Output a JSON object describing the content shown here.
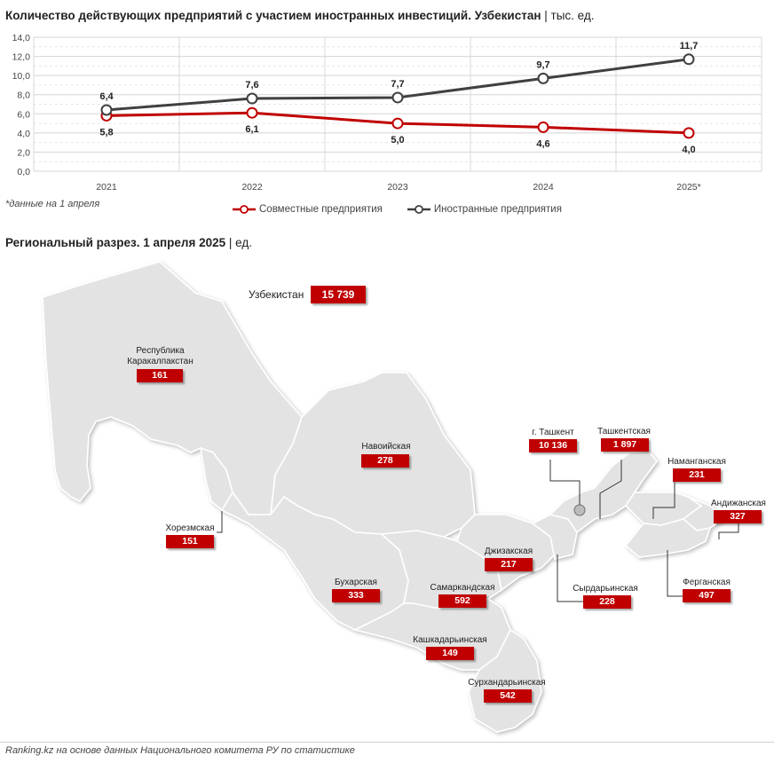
{
  "header": {
    "title": "Количество действующих предприятий с участием иностранных инвестиций. Узбекистан",
    "title_unit": "| тыс. ед."
  },
  "chart_data": {
    "type": "line",
    "title": "Количество действующих предприятий с участием иностранных инвестиций. Узбекистан | тыс. ед.",
    "categories": [
      "2021",
      "2022",
      "2023",
      "2024",
      "2025*"
    ],
    "yticks": [
      "0,0",
      "2,0",
      "4,0",
      "6,0",
      "8,0",
      "10,0",
      "12,0",
      "14,0"
    ],
    "ylim": [
      0,
      14
    ],
    "grid": true,
    "legend_position": "bottom",
    "series": [
      {
        "name": "Совместные предприятия",
        "values": [
          5.8,
          6.1,
          5.0,
          4.6,
          4.0
        ],
        "labels": [
          "5,8",
          "6,1",
          "5,0",
          "4,6",
          "4,0"
        ],
        "color": "#c00000"
      },
      {
        "name": "Иностранные предприятия",
        "values": [
          6.4,
          7.6,
          7.7,
          9.7,
          11.7
        ],
        "labels": [
          "6,4",
          "7,6",
          "7,7",
          "9,7",
          "11,7"
        ],
        "color": "#404040"
      }
    ]
  },
  "note": "*данные на 1 апреля",
  "regional": {
    "title": "Региональный разрез. 1 апреля 2025",
    "title_unit": "| ед.",
    "country_label": "Узбекистан",
    "country_value": "15 739",
    "regions": [
      {
        "name": "Республика Каракалпакстан",
        "value": "161"
      },
      {
        "name": "Навоийская",
        "value": "278"
      },
      {
        "name": "Хорезмская",
        "value": "151"
      },
      {
        "name": "Бухарская",
        "value": "333"
      },
      {
        "name": "Самаркандская",
        "value": "592"
      },
      {
        "name": "Джизакская",
        "value": "217"
      },
      {
        "name": "Кашкадарьинская",
        "value": "149"
      },
      {
        "name": "Сурхандарьинская",
        "value": "542"
      },
      {
        "name": "Сырдарьинская",
        "value": "228"
      },
      {
        "name": "г. Ташкент",
        "value": "10 136"
      },
      {
        "name": "Ташкентская",
        "value": "1 897"
      },
      {
        "name": "Наманганская",
        "value": "231"
      },
      {
        "name": "Андижанская",
        "value": "327"
      },
      {
        "name": "Ферганская",
        "value": "497"
      }
    ]
  },
  "source": "Ranking.kz на основе данных Национального комитета РУ по статистике",
  "colors": {
    "accent": "#c00000",
    "dark": "#404040",
    "map_fill": "#e3e3e3"
  }
}
